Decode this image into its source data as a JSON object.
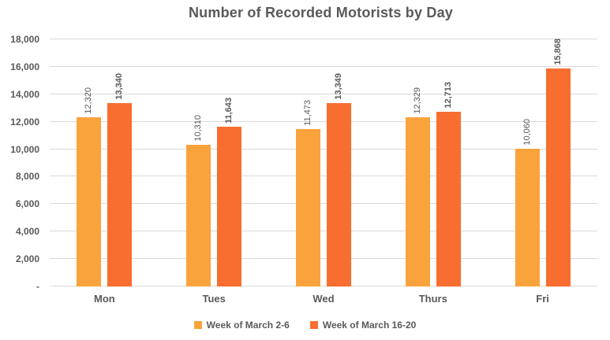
{
  "chart_data": {
    "type": "bar",
    "title": "Number of Recorded Motorists by Day",
    "categories": [
      "Mon",
      "Tues",
      "Wed",
      "Thurs",
      "Fri"
    ],
    "series": [
      {
        "name": "Week of March 2-6",
        "color": "#F9A33D",
        "values": [
          12320,
          10310,
          11473,
          12329,
          10060
        ],
        "labels": [
          "12,320",
          "10,310",
          "11,473",
          "12,329",
          "10,060"
        ],
        "label_bold": false
      },
      {
        "name": "Week of March 16-20",
        "color": "#F76E30",
        "values": [
          13340,
          11643,
          13349,
          12713,
          15868
        ],
        "labels": [
          "13,340",
          "11,643",
          "13,349",
          "12,713",
          "15,868"
        ],
        "label_bold": true
      }
    ],
    "ylim": [
      0,
      18000
    ],
    "ytick_step": 2000,
    "ytick_labels": [
      "-",
      "2,000",
      "4,000",
      "6,000",
      "8,000",
      "10,000",
      "12,000",
      "14,000",
      "16,000",
      "18,000"
    ],
    "grid": true,
    "legend_position": "bottom",
    "data_label_rotation": 90,
    "colors": {
      "text": "#595959",
      "gridline": "#D9D9D9",
      "background": "#FFFFFF"
    }
  }
}
